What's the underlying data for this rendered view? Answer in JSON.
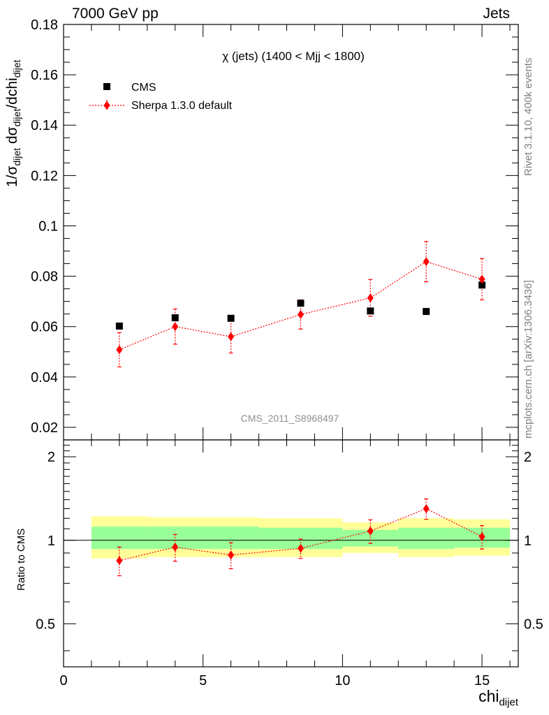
{
  "header": {
    "energy_label": "7000 GeV pp",
    "category_label": "Jets"
  },
  "side_labels": {
    "rivet": "Rivet 3.1.10,  400k events",
    "mcplots": "mcplots.cern.ch [arXiv:1306.3436]"
  },
  "chart_data": [
    {
      "type": "scatter",
      "title": "χ (jets) (1400 < Mjj < 1800)",
      "watermark": "CMS_2011_S8968497",
      "ylabel": "1/σ_dijet dσ_dijet/dchi_dijet",
      "ylabel_parts": {
        "main": "1/σ",
        "sub1": "dijet",
        "mid": " dσ",
        "sub2": "dijet",
        "tail": "/dchi",
        "sub3": "dijet"
      },
      "xlim": [
        0,
        16.3
      ],
      "ylim": [
        0.015,
        0.18
      ],
      "yticks": [
        0.02,
        0.04,
        0.06,
        0.08,
        0.1,
        0.12,
        0.14,
        0.16,
        0.18
      ],
      "ytick_labels": [
        "0.02",
        "0.04",
        "0.06",
        "0.08",
        "0.1",
        "0.12",
        "0.14",
        "0.16",
        "0.18"
      ],
      "series": [
        {
          "name": "CMS",
          "color": "#000000",
          "marker": "square",
          "x": [
            2,
            4,
            6,
            8.5,
            11,
            13,
            15
          ],
          "y": [
            0.0602,
            0.0635,
            0.0633,
            0.0693,
            0.0662,
            0.066,
            0.0765
          ]
        },
        {
          "name": "Sherpa 1.3.0 default",
          "color": "#ff0000",
          "marker": "diamond",
          "line": "dotted",
          "x": [
            2,
            4,
            6,
            8.5,
            11,
            13,
            15
          ],
          "y": [
            0.0508,
            0.06,
            0.056,
            0.0648,
            0.0714,
            0.0858,
            0.0788
          ],
          "err_low": [
            0.0068,
            0.007,
            0.0065,
            0.0058,
            0.0073,
            0.008,
            0.0082
          ],
          "err_high": [
            0.0068,
            0.007,
            0.0065,
            0.0058,
            0.0073,
            0.008,
            0.0082
          ]
        }
      ],
      "legend_position": "top-left"
    },
    {
      "type": "scatter",
      "ylabel": "Ratio to CMS",
      "xlabel": "chi_dijet",
      "xlabel_parts": {
        "main": "chi",
        "sub": "dijet"
      },
      "xlim": [
        0,
        16.3
      ],
      "ylim": [
        0.35,
        2.3
      ],
      "log_y": true,
      "yticks": [
        0.5,
        1,
        2
      ],
      "ytick_labels": [
        "0.5",
        "1",
        "2"
      ],
      "xticks": [
        0,
        5,
        10,
        15
      ],
      "xtick_labels": [
        "0",
        "5",
        "10",
        "15"
      ],
      "bands": {
        "bins": [
          [
            1,
            3
          ],
          [
            3,
            7
          ],
          [
            7,
            10
          ],
          [
            10,
            12
          ],
          [
            12,
            14
          ],
          [
            14,
            16
          ]
        ],
        "outer_low": [
          0.86,
          0.87,
          0.87,
          0.9,
          0.87,
          0.88
        ],
        "outer_high": [
          1.22,
          1.21,
          1.2,
          1.16,
          1.2,
          1.19
        ],
        "inner_low": [
          0.93,
          0.93,
          0.93,
          0.95,
          0.93,
          0.94
        ],
        "inner_high": [
          1.12,
          1.12,
          1.11,
          1.09,
          1.11,
          1.11
        ],
        "outer_color": "#ffff99",
        "inner_color": "#99ff99"
      },
      "series": [
        {
          "name": "Sherpa 1.3.0 default",
          "color": "#ff0000",
          "marker": "diamond",
          "line": "dotted",
          "x": [
            2,
            4,
            6,
            8.5,
            11,
            13,
            15
          ],
          "y": [
            0.845,
            0.945,
            0.885,
            0.935,
            1.08,
            1.3,
            1.03
          ],
          "err_low": [
            0.1,
            0.105,
            0.095,
            0.075,
            0.105,
            0.11,
            0.1
          ],
          "err_high": [
            0.1,
            0.105,
            0.095,
            0.075,
            0.105,
            0.11,
            0.1
          ]
        }
      ]
    }
  ]
}
